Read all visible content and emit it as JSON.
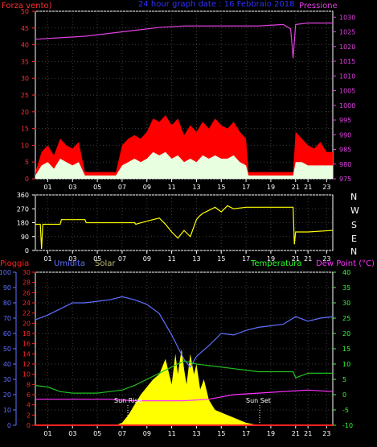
{
  "colors": {
    "background": "#000000",
    "wind_axis": "#ff3030",
    "pressure": "#e040e0",
    "title": "#3030ff",
    "gust": "#ff0000",
    "wind_avg": "#e8ffe0",
    "wind_dir": "#ffff00",
    "humidity": "#6070ff",
    "solar": "#ffff00",
    "solar_label": "#bdbd7a",
    "temperature": "#20c020",
    "dew_point": "#ff30ff",
    "rain": "#ff2020",
    "temp_axis": "#30ff30",
    "grid": "#404040",
    "axis": "#ffffff"
  },
  "panel_top": {
    "title": "24 hour graph date : 16 Febbraio 2018",
    "left_label": "Forza vento)",
    "right_label": "Pressione"
  },
  "panel_mid": {
    "compass_letters": [
      "N",
      "W",
      "S",
      "E",
      "N"
    ]
  },
  "panel_bottom": {
    "label_rain": "Pioggia",
    "label_humidity": "Umidita",
    "label_solar": "Solar",
    "label_temp": "Temperatura",
    "label_dew": "Dew Point (°C)",
    "sun_rise": "Sun Rise",
    "sun_set": "Sun Set"
  },
  "chart_data": [
    {
      "type": "line",
      "name": "wind_and_pressure",
      "x_ticks": [
        "01",
        "03",
        "05",
        "07",
        "09",
        "11",
        "13",
        "15",
        "17",
        "19",
        "21",
        "21",
        "23"
      ],
      "y_left_ticks": [
        "0",
        "5",
        "10",
        "15",
        "20",
        "25",
        "30",
        "35",
        "40",
        "45",
        "50"
      ],
      "y_left_range": [
        0,
        50
      ],
      "y_right_ticks": [
        "975",
        "980",
        "985",
        "990",
        "995",
        "1000",
        "1005",
        "1010",
        "1015",
        "1020",
        "1025",
        "1030"
      ],
      "y_right_range": [
        975,
        1032
      ],
      "series": [
        {
          "key": "pressure",
          "hours": [
            0,
            2,
            4,
            6,
            8,
            10,
            12,
            14,
            16,
            18,
            20,
            20.6,
            20.8,
            21,
            22,
            24
          ],
          "values": [
            1022.5,
            1023,
            1023.5,
            1024.5,
            1025.5,
            1026.5,
            1027,
            1027,
            1027,
            1027,
            1027.5,
            1026,
            1016,
            1027.5,
            1028,
            1028
          ]
        },
        {
          "key": "gust",
          "hours": [
            0,
            0.5,
            1,
            1.5,
            2,
            2.5,
            3,
            3.5,
            4,
            6.5,
            7,
            7.5,
            8,
            8.5,
            9,
            9.5,
            10,
            10.5,
            11,
            11.5,
            12,
            12.5,
            13,
            13.5,
            14,
            14.5,
            15,
            15.5,
            16,
            16.5,
            17,
            17.2,
            20.8,
            21,
            21.5,
            22,
            22.5,
            23,
            23.5,
            24
          ],
          "values": [
            2,
            8,
            10,
            7,
            12,
            10,
            9,
            11,
            2,
            2,
            10,
            12,
            13,
            12,
            14,
            18,
            17,
            19,
            16,
            18,
            13,
            16,
            14,
            17,
            15,
            18,
            16,
            15,
            17,
            14,
            12,
            2,
            2,
            14,
            12,
            10,
            9,
            11,
            8,
            8
          ]
        },
        {
          "key": "wind_avg",
          "hours": [
            0,
            0.5,
            1,
            1.5,
            2,
            2.5,
            3,
            3.5,
            4,
            6.5,
            7,
            7.5,
            8,
            8.5,
            9,
            9.5,
            10,
            10.5,
            11,
            11.5,
            12,
            12.5,
            13,
            13.5,
            14,
            14.5,
            15,
            15.5,
            16,
            16.5,
            17,
            17.2,
            20.8,
            21,
            21.5,
            22,
            22.5,
            23,
            23.5,
            24
          ],
          "values": [
            1,
            4,
            5,
            3,
            6,
            5,
            4,
            5,
            1,
            1,
            4,
            5,
            6,
            5,
            6,
            8,
            7,
            8,
            6,
            7,
            5,
            6,
            5,
            7,
            6,
            7,
            6,
            6,
            7,
            5,
            4,
            1,
            1,
            5,
            5,
            4,
            4,
            4,
            4,
            4
          ]
        }
      ]
    },
    {
      "type": "line",
      "name": "wind_direction",
      "x_ticks": [
        "01",
        "03",
        "05",
        "07",
        "09",
        "11",
        "13",
        "15",
        "17",
        "19",
        "21",
        "21",
        "23"
      ],
      "y_ticks": [
        "0",
        "90",
        "180",
        "270",
        "360"
      ],
      "y_range": [
        0,
        360
      ],
      "series": [
        {
          "key": "wind_dir",
          "hours": [
            0,
            0.4,
            0.5,
            0.6,
            1,
            2,
            2.1,
            4,
            4.1,
            8,
            8.1,
            9,
            10,
            10.5,
            11,
            11.5,
            12,
            12.5,
            13,
            13.2,
            13.5,
            14,
            14.5,
            15,
            15.5,
            16,
            17,
            20,
            20.8,
            20.9,
            21,
            22,
            24
          ],
          "values": [
            170,
            170,
            10,
            170,
            170,
            170,
            200,
            200,
            180,
            180,
            170,
            190,
            210,
            170,
            120,
            80,
            130,
            90,
            200,
            220,
            240,
            260,
            280,
            250,
            290,
            270,
            280,
            280,
            280,
            40,
            120,
            120,
            130
          ]
        }
      ]
    },
    {
      "type": "line",
      "name": "rain_humidity_solar_temperature",
      "x_ticks": [
        "01",
        "03",
        "05",
        "07",
        "09",
        "11",
        "13",
        "15",
        "17",
        "19",
        "21",
        "21",
        "23"
      ],
      "y_humidity_ticks": [
        "0",
        "10",
        "20",
        "30",
        "40",
        "50",
        "60",
        "70",
        "80",
        "90",
        "100"
      ],
      "y_humidity_range": [
        0,
        100
      ],
      "y_rain_ticks": [
        "0",
        "2",
        "4",
        "6",
        "8",
        "10",
        "12",
        "14",
        "16",
        "18",
        "20",
        "22",
        "24",
        "26",
        "28",
        "30"
      ],
      "y_rain_range": [
        0,
        30
      ],
      "y_temp_ticks": [
        "-10",
        "-5",
        "0",
        "5",
        "10",
        "15",
        "20",
        "25",
        "30",
        "35",
        "40"
      ],
      "y_temp_range": [
        -10,
        40
      ],
      "series": [
        {
          "key": "humidity",
          "hours": [
            0,
            1,
            2,
            3,
            4,
            5,
            6,
            7,
            8,
            9,
            10,
            11,
            12,
            12.5,
            13,
            14,
            15,
            16,
            17,
            18,
            19,
            20,
            21,
            22,
            23,
            24
          ],
          "values": [
            69,
            72,
            76,
            80,
            80,
            81,
            82,
            84,
            82,
            79,
            73,
            59,
            43,
            38,
            45,
            52,
            60,
            59,
            62,
            64,
            65,
            66,
            71,
            68,
            70,
            71
          ]
        },
        {
          "key": "temperature",
          "hours": [
            0,
            1,
            2,
            3,
            4,
            5,
            6,
            7,
            8,
            9,
            10,
            11,
            12,
            13,
            14,
            15,
            16,
            17,
            18,
            19,
            20,
            20.8,
            21,
            22,
            23,
            24
          ],
          "values": [
            3,
            2.5,
            1,
            0.5,
            0.5,
            0.5,
            1,
            1.5,
            3,
            5,
            7,
            9,
            11,
            10,
            9.5,
            9,
            8.5,
            8,
            7.5,
            7.5,
            7.5,
            7.5,
            5.5,
            7,
            7,
            7
          ]
        },
        {
          "key": "dew_point",
          "hours": [
            0,
            2,
            4,
            6,
            8,
            10,
            12,
            14,
            16,
            18,
            20,
            22,
            24
          ],
          "values": [
            -1.5,
            -1.5,
            -1.5,
            -1.5,
            -2,
            -2,
            -2,
            -1.5,
            0,
            0.5,
            1,
            1.5,
            1
          ]
        },
        {
          "key": "solar",
          "hours": [
            6.5,
            7,
            7.5,
            8,
            8.5,
            9,
            9.5,
            10,
            10.5,
            11,
            11.3,
            11.5,
            11.8,
            12,
            12.2,
            12.5,
            12.8,
            13,
            13.3,
            13.6,
            14,
            14.5,
            15,
            15.5,
            16,
            17,
            18
          ],
          "values": [
            0,
            0.5,
            2,
            4,
            6,
            7.5,
            9,
            10,
            13,
            8,
            14,
            10,
            15,
            11,
            8,
            14,
            10,
            12,
            7,
            9,
            5,
            3,
            2.5,
            2,
            1.5,
            0.5,
            0
          ]
        },
        {
          "key": "rain",
          "hours": [
            0,
            24
          ],
          "values": [
            0,
            0
          ]
        }
      ]
    }
  ]
}
